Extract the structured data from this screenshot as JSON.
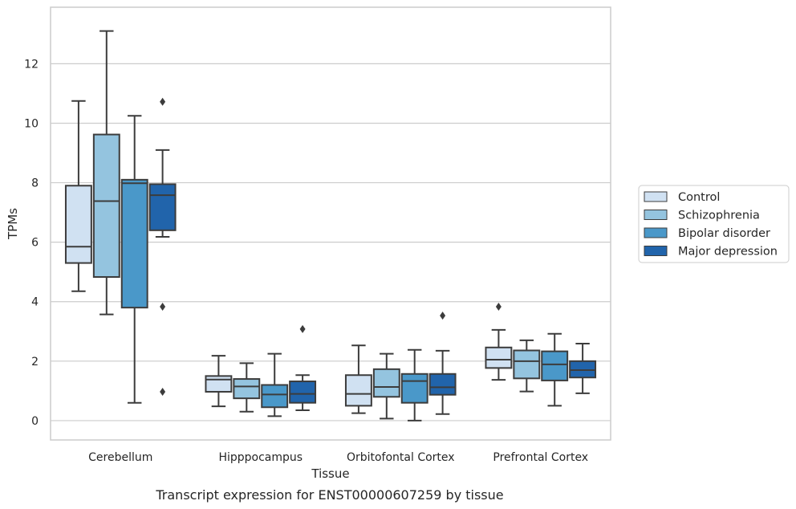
{
  "chart_data": {
    "type": "boxplot",
    "title": "",
    "caption": "Transcript expression for ENST00000607259 by tissue",
    "xlabel": "Tissue",
    "ylabel": "TPMs",
    "ylim": [
      -0.65,
      13.9
    ],
    "yticks": [
      0,
      2,
      4,
      6,
      8,
      10,
      12
    ],
    "grid": "y-axis",
    "legend_position": "right",
    "categories": [
      "Cerebellum",
      "Hipppocampus",
      "Orbitofontal Cortex",
      "Prefrontal Cortex"
    ],
    "series": [
      {
        "name": "Control",
        "color": "#d0e1f2",
        "boxes": [
          {
            "whisker_low": 4.35,
            "q1": 5.3,
            "median": 5.85,
            "q3": 7.9,
            "whisker_high": 10.75,
            "outliers": []
          },
          {
            "whisker_low": 0.48,
            "q1": 0.97,
            "median": 1.38,
            "q3": 1.5,
            "whisker_high": 2.18,
            "outliers": []
          },
          {
            "whisker_low": 0.25,
            "q1": 0.5,
            "median": 0.9,
            "q3": 1.53,
            "whisker_high": 2.53,
            "outliers": []
          },
          {
            "whisker_low": 1.37,
            "q1": 1.77,
            "median": 2.05,
            "q3": 2.46,
            "whisker_high": 3.05,
            "outliers": [
              3.83
            ]
          }
        ]
      },
      {
        "name": "Schizophrenia",
        "color": "#94c4df",
        "boxes": [
          {
            "whisker_low": 3.57,
            "q1": 4.83,
            "median": 7.38,
            "q3": 9.62,
            "whisker_high": 13.1,
            "outliers": []
          },
          {
            "whisker_low": 0.3,
            "q1": 0.75,
            "median": 1.15,
            "q3": 1.4,
            "whisker_high": 1.93,
            "outliers": []
          },
          {
            "whisker_low": 0.07,
            "q1": 0.8,
            "median": 1.13,
            "q3": 1.73,
            "whisker_high": 2.25,
            "outliers": []
          },
          {
            "whisker_low": 0.98,
            "q1": 1.42,
            "median": 2.0,
            "q3": 2.36,
            "whisker_high": 2.7,
            "outliers": []
          }
        ]
      },
      {
        "name": "Bipolar disorder",
        "color": "#4a98c9",
        "boxes": [
          {
            "whisker_low": 0.6,
            "q1": 3.8,
            "median": 7.98,
            "q3": 8.1,
            "whisker_high": 10.25,
            "outliers": []
          },
          {
            "whisker_low": 0.15,
            "q1": 0.45,
            "median": 0.88,
            "q3": 1.2,
            "whisker_high": 2.25,
            "outliers": []
          },
          {
            "whisker_low": 0.0,
            "q1": 0.6,
            "median": 1.33,
            "q3": 1.57,
            "whisker_high": 2.38,
            "outliers": []
          },
          {
            "whisker_low": 0.5,
            "q1": 1.35,
            "median": 1.89,
            "q3": 2.33,
            "whisker_high": 2.92,
            "outliers": []
          }
        ]
      },
      {
        "name": "Major depression",
        "color": "#2164ab",
        "boxes": [
          {
            "whisker_low": 6.18,
            "q1": 6.4,
            "median": 7.58,
            "q3": 7.95,
            "whisker_high": 9.1,
            "outliers": [
              10.72,
              3.83,
              0.97
            ]
          },
          {
            "whisker_low": 0.35,
            "q1": 0.6,
            "median": 0.9,
            "q3": 1.32,
            "whisker_high": 1.53,
            "outliers": [
              3.08
            ]
          },
          {
            "whisker_low": 0.22,
            "q1": 0.87,
            "median": 1.12,
            "q3": 1.57,
            "whisker_high": 2.35,
            "outliers": [
              3.53
            ]
          },
          {
            "whisker_low": 0.92,
            "q1": 1.45,
            "median": 1.7,
            "q3": 2.0,
            "whisker_high": 2.59,
            "outliers": []
          }
        ]
      }
    ]
  }
}
